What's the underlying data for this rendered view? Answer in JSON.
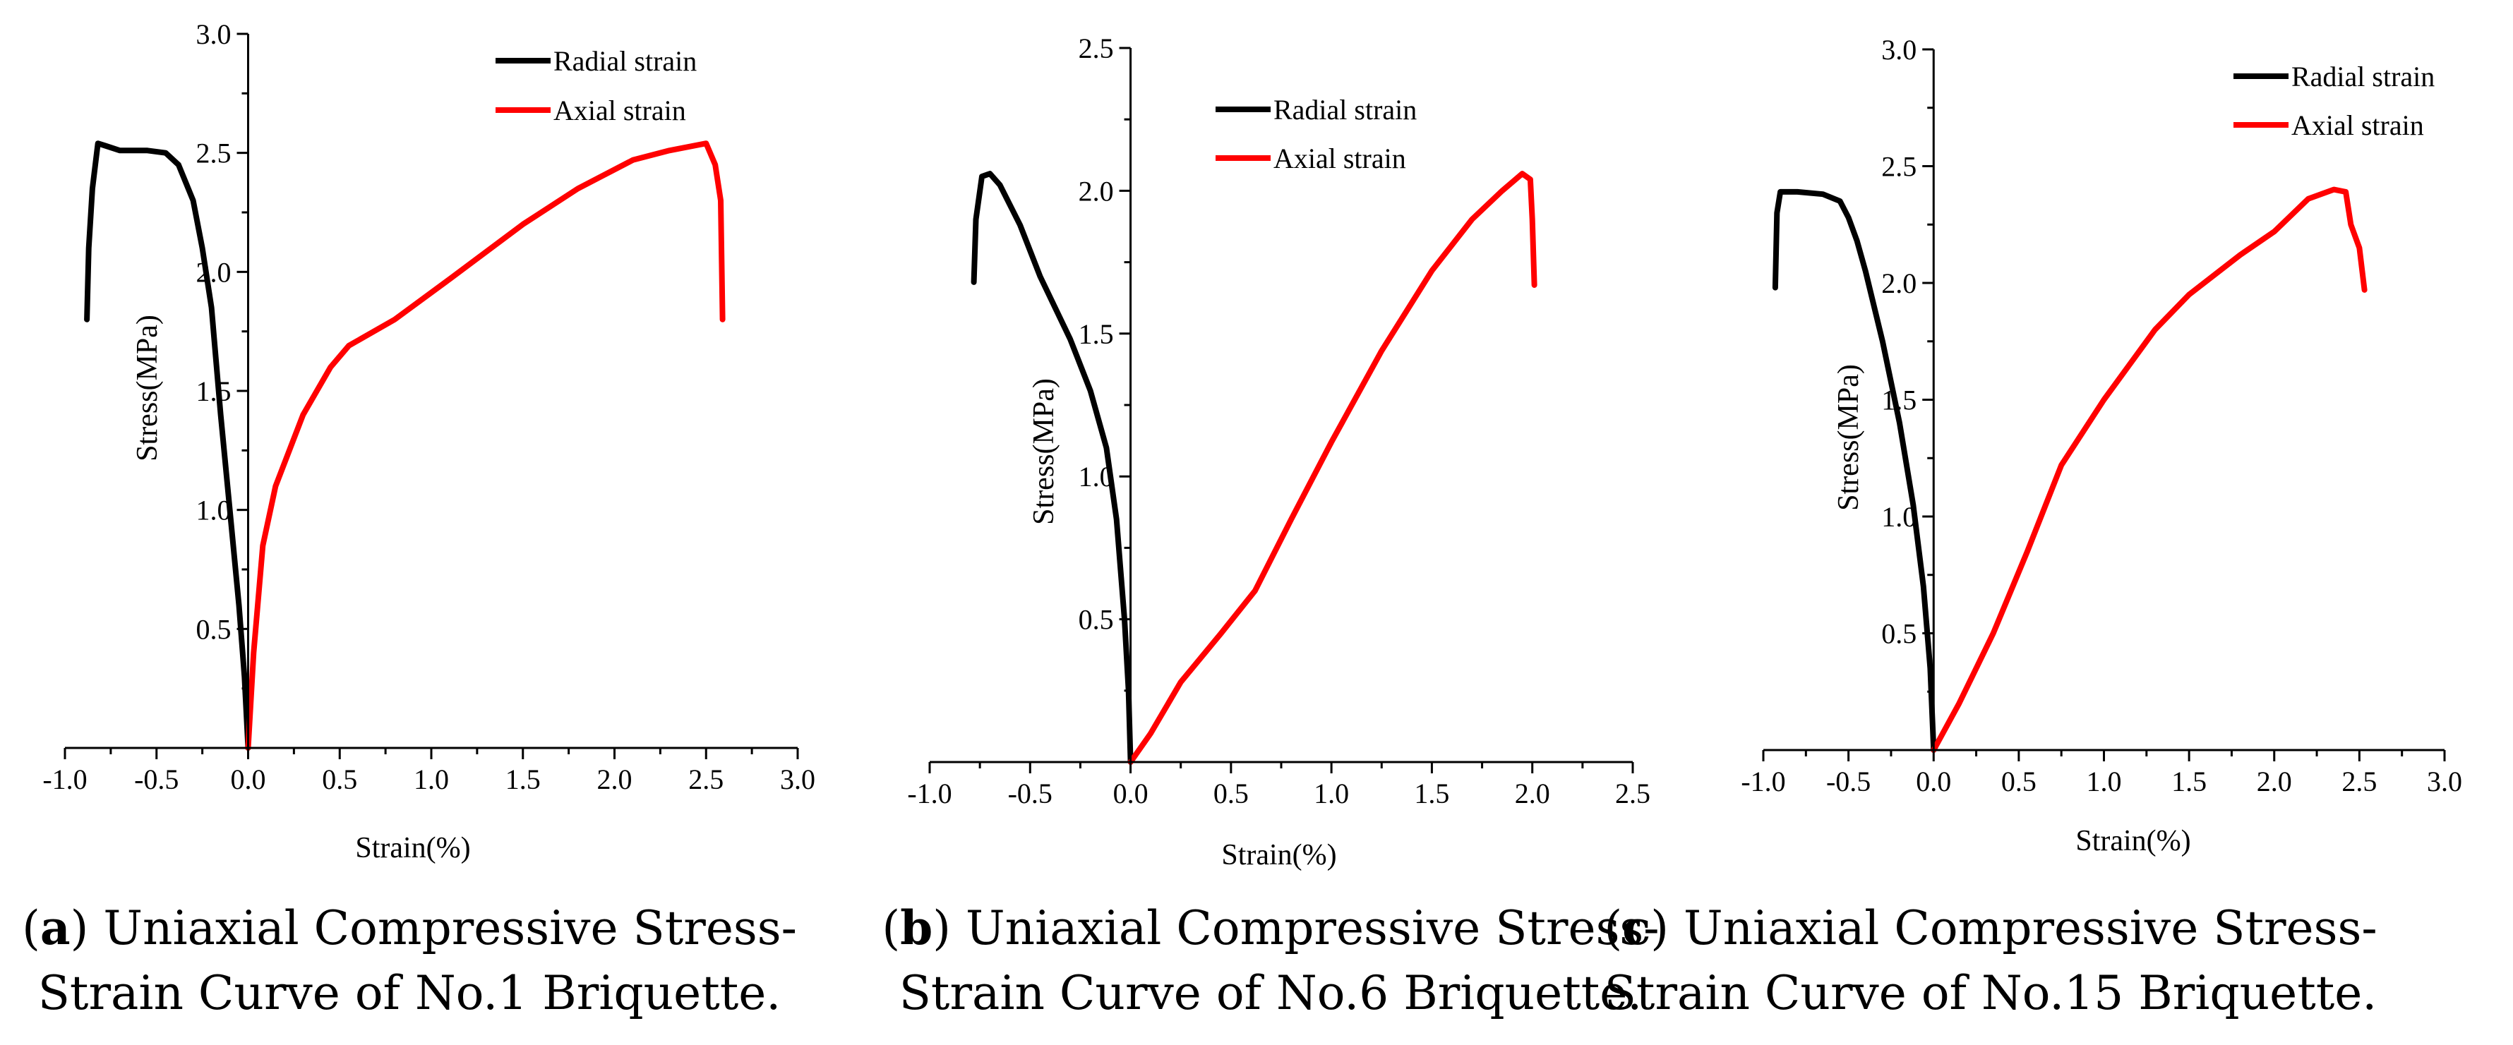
{
  "colors": {
    "radial": "#000000",
    "axial": "#ff0000",
    "axis": "#000000"
  },
  "chart_data": [
    {
      "type": "line",
      "id": "a",
      "caption_letter": "a",
      "caption_line1": "Uniaxial Compressive Stress-",
      "caption_line2": "Strain Curve of No.1 Briquette.",
      "xlabel": "Strain(%)",
      "ylabel": "Stress(MPa)",
      "xlim": [
        -1.0,
        3.0
      ],
      "ylim": [
        0,
        3.0
      ],
      "xticks": [
        -1.0,
        -0.5,
        0.0,
        0.5,
        1.0,
        1.5,
        2.0,
        2.5,
        3.0
      ],
      "xtick_labels": [
        "-1.0",
        "-0.5",
        "0.0",
        "0.5",
        "1.0",
        "1.5",
        "2.0",
        "2.5",
        "3.0"
      ],
      "yticks": [
        0.5,
        1.0,
        1.5,
        2.0,
        2.5,
        3.0
      ],
      "ytick_labels": [
        "0.5",
        "1.0",
        "1.5",
        "2.0",
        "2.5",
        "3.0"
      ],
      "legend_position": "top-right",
      "series": [
        {
          "name": "Radial strain",
          "color_key": "radial",
          "points": [
            [
              -0.88,
              1.8
            ],
            [
              -0.87,
              2.1
            ],
            [
              -0.85,
              2.35
            ],
            [
              -0.82,
              2.54
            ],
            [
              -0.78,
              2.53
            ],
            [
              -0.7,
              2.51
            ],
            [
              -0.55,
              2.51
            ],
            [
              -0.45,
              2.5
            ],
            [
              -0.38,
              2.45
            ],
            [
              -0.3,
              2.3
            ],
            [
              -0.25,
              2.1
            ],
            [
              -0.2,
              1.85
            ],
            [
              -0.15,
              1.4
            ],
            [
              -0.1,
              1.0
            ],
            [
              -0.05,
              0.6
            ],
            [
              -0.02,
              0.3
            ],
            [
              0.0,
              0.0
            ]
          ]
        },
        {
          "name": "Axial strain",
          "color_key": "axial",
          "points": [
            [
              0.0,
              0.0
            ],
            [
              0.03,
              0.4
            ],
            [
              0.08,
              0.85
            ],
            [
              0.15,
              1.1
            ],
            [
              0.3,
              1.4
            ],
            [
              0.45,
              1.6
            ],
            [
              0.55,
              1.69
            ],
            [
              0.8,
              1.8
            ],
            [
              1.1,
              1.97
            ],
            [
              1.5,
              2.2
            ],
            [
              1.8,
              2.35
            ],
            [
              2.1,
              2.47
            ],
            [
              2.3,
              2.51
            ],
            [
              2.5,
              2.54
            ],
            [
              2.55,
              2.45
            ],
            [
              2.58,
              2.3
            ],
            [
              2.59,
              1.8
            ]
          ]
        }
      ]
    },
    {
      "type": "line",
      "id": "b",
      "caption_letter": "b",
      "caption_line1": "Uniaxial Compressive Stress-",
      "caption_line2": "Strain Curve of No.6 Briquette.",
      "xlabel": "Strain(%)",
      "ylabel": "Stress(MPa)",
      "xlim": [
        -1.0,
        2.5
      ],
      "ylim": [
        0,
        2.5
      ],
      "xticks": [
        -1.0,
        -0.5,
        0.0,
        0.5,
        1.0,
        1.5,
        2.0,
        2.5
      ],
      "xtick_labels": [
        "-1.0",
        "-0.5",
        "0.0",
        "0.5",
        "1.0",
        "1.5",
        "2.0",
        "2.5"
      ],
      "yticks": [
        0.5,
        1.0,
        1.5,
        2.0,
        2.5
      ],
      "ytick_labels": [
        "0.5",
        "1.0",
        "1.5",
        "2.0",
        "2.5"
      ],
      "legend_position": "top-center",
      "series": [
        {
          "name": "Radial strain",
          "color_key": "radial",
          "points": [
            [
              -0.78,
              1.68
            ],
            [
              -0.77,
              1.9
            ],
            [
              -0.74,
              2.05
            ],
            [
              -0.7,
              2.06
            ],
            [
              -0.65,
              2.02
            ],
            [
              -0.55,
              1.88
            ],
            [
              -0.45,
              1.7
            ],
            [
              -0.3,
              1.48
            ],
            [
              -0.2,
              1.3
            ],
            [
              -0.12,
              1.1
            ],
            [
              -0.07,
              0.85
            ],
            [
              -0.03,
              0.5
            ],
            [
              -0.01,
              0.25
            ],
            [
              0.0,
              0.0
            ]
          ]
        },
        {
          "name": "Axial strain",
          "color_key": "axial",
          "points": [
            [
              0.0,
              0.0
            ],
            [
              0.1,
              0.1
            ],
            [
              0.25,
              0.28
            ],
            [
              0.45,
              0.45
            ],
            [
              0.62,
              0.6
            ],
            [
              0.8,
              0.85
            ],
            [
              1.0,
              1.12
            ],
            [
              1.25,
              1.44
            ],
            [
              1.5,
              1.72
            ],
            [
              1.7,
              1.9
            ],
            [
              1.85,
              2.0
            ],
            [
              1.95,
              2.06
            ],
            [
              1.99,
              2.04
            ],
            [
              2.0,
              1.9
            ],
            [
              2.01,
              1.67
            ]
          ]
        }
      ]
    },
    {
      "type": "line",
      "id": "c",
      "caption_letter": "c",
      "caption_line1": "Uniaxial Compressive Stress-",
      "caption_line2": "Strain Curve of No.15 Briquette.",
      "xlabel": "Strain(%)",
      "ylabel": "Stress(MPa)",
      "xlim": [
        -1.0,
        3.0
      ],
      "ylim": [
        0,
        3.0
      ],
      "xticks": [
        -1.0,
        -0.5,
        0.0,
        0.5,
        1.0,
        1.5,
        2.0,
        2.5,
        3.0
      ],
      "xtick_labels": [
        "-1.0",
        "-0.5",
        "0.0",
        "0.5",
        "1.0",
        "1.5",
        "2.0",
        "2.5",
        "3.0"
      ],
      "yticks": [
        0.5,
        1.0,
        1.5,
        2.0,
        2.5,
        3.0
      ],
      "ytick_labels": [
        "0.5",
        "1.0",
        "1.5",
        "2.0",
        "2.5",
        "3.0"
      ],
      "legend_position": "top-right",
      "series": [
        {
          "name": "Radial strain",
          "color_key": "radial",
          "points": [
            [
              -0.93,
              1.98
            ],
            [
              -0.92,
              2.3
            ],
            [
              -0.9,
              2.39
            ],
            [
              -0.8,
              2.39
            ],
            [
              -0.65,
              2.38
            ],
            [
              -0.55,
              2.35
            ],
            [
              -0.5,
              2.28
            ],
            [
              -0.45,
              2.18
            ],
            [
              -0.4,
              2.05
            ],
            [
              -0.3,
              1.75
            ],
            [
              -0.2,
              1.4
            ],
            [
              -0.12,
              1.05
            ],
            [
              -0.06,
              0.7
            ],
            [
              -0.02,
              0.35
            ],
            [
              0.0,
              0.0
            ]
          ]
        },
        {
          "name": "Axial strain",
          "color_key": "axial",
          "points": [
            [
              0.0,
              0.0
            ],
            [
              0.15,
              0.2
            ],
            [
              0.35,
              0.5
            ],
            [
              0.55,
              0.85
            ],
            [
              0.75,
              1.22
            ],
            [
              1.0,
              1.5
            ],
            [
              1.3,
              1.8
            ],
            [
              1.5,
              1.95
            ],
            [
              1.8,
              2.12
            ],
            [
              2.0,
              2.22
            ],
            [
              2.2,
              2.36
            ],
            [
              2.35,
              2.4
            ],
            [
              2.42,
              2.39
            ],
            [
              2.45,
              2.25
            ],
            [
              2.5,
              2.15
            ],
            [
              2.53,
              1.97
            ]
          ]
        }
      ]
    }
  ]
}
